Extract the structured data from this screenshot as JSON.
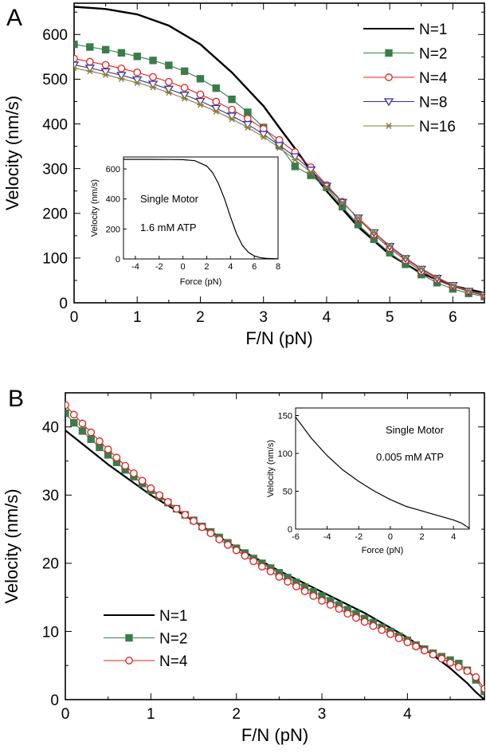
{
  "chart_data": [
    {
      "panel_label": "A",
      "type": "line",
      "xlabel": "F/N (pN)",
      "ylabel": "Velocity (nm/s)",
      "xlim": [
        0,
        6.5
      ],
      "ylim": [
        0,
        670
      ],
      "x_ticks": [
        "0",
        "1",
        "2",
        "3",
        "4",
        "5",
        "6"
      ],
      "y_ticks": [
        "0",
        "100",
        "200",
        "300",
        "400",
        "500",
        "600"
      ],
      "legend_position": "top-right",
      "series": [
        {
          "name": "N=1",
          "color": "#000000",
          "marker": "none",
          "x": [
            0,
            0.5,
            1,
            1.5,
            2,
            2.5,
            3,
            3.25,
            3.5,
            3.75,
            4,
            4.5,
            5,
            5.5,
            6,
            6.5
          ],
          "y": [
            662,
            657,
            645,
            620,
            578,
            515,
            440,
            392,
            345,
            296,
            250,
            170,
            108,
            66,
            38,
            22
          ]
        },
        {
          "name": "N=2",
          "color": "#3a7d4a",
          "marker": "square",
          "x": [
            0,
            0.25,
            0.5,
            0.75,
            1,
            1.25,
            1.5,
            1.75,
            2,
            2.25,
            2.5,
            2.75,
            3,
            3.25,
            3.5,
            3.75,
            4,
            4.25,
            4.5,
            4.75,
            5,
            5.25,
            5.5,
            5.75,
            6,
            6.25,
            6.5
          ],
          "y": [
            578,
            572,
            566,
            559,
            551,
            542,
            531,
            518,
            501,
            480,
            455,
            426,
            392,
            352,
            305,
            285,
            258,
            215,
            175,
            142,
            112,
            86,
            63,
            45,
            31,
            21,
            14
          ]
        },
        {
          "name": "N=4",
          "color": "#e0201e",
          "marker": "circle",
          "x": [
            0,
            0.25,
            0.5,
            0.75,
            1,
            1.25,
            1.5,
            1.75,
            2,
            2.25,
            2.5,
            2.75,
            3,
            3.25,
            3.5,
            3.75,
            4,
            4.25,
            4.5,
            4.75,
            5,
            5.25,
            5.5,
            5.75,
            6,
            6.25,
            6.5
          ],
          "y": [
            546,
            539,
            532,
            524,
            515,
            505,
            494,
            481,
            466,
            450,
            432,
            412,
            389,
            364,
            337,
            303,
            263,
            226,
            188,
            153,
            122,
            95,
            71,
            52,
            37,
            25,
            16
          ]
        },
        {
          "name": "N=8",
          "color": "#3030a0",
          "marker": "triangle-down",
          "x": [
            0,
            0.25,
            0.5,
            0.75,
            1,
            1.25,
            1.5,
            1.75,
            2,
            2.25,
            2.5,
            2.75,
            3,
            3.25,
            3.5,
            3.75,
            4,
            4.25,
            4.5,
            4.75,
            5,
            5.25,
            5.5,
            5.75,
            6,
            6.25,
            6.5
          ],
          "y": [
            532,
            525,
            517,
            509,
            499,
            489,
            478,
            465,
            451,
            435,
            418,
            399,
            377,
            352,
            327,
            297,
            261,
            225,
            190,
            157,
            126,
            99,
            75,
            55,
            39,
            26,
            17
          ]
        },
        {
          "name": "N=16",
          "color": "#8a7a3c",
          "marker": "asterisk",
          "x": [
            0,
            0.25,
            0.5,
            0.75,
            1,
            1.25,
            1.5,
            1.75,
            2,
            2.25,
            2.5,
            2.75,
            3,
            3.25,
            3.5,
            3.75,
            4,
            4.25,
            4.5,
            4.75,
            5,
            5.25,
            5.5,
            5.75,
            6,
            6.25,
            6.5
          ],
          "y": [
            525,
            518,
            510,
            501,
            492,
            482,
            470,
            457,
            443,
            428,
            411,
            392,
            371,
            347,
            320,
            292,
            259,
            224,
            190,
            158,
            128,
            101,
            77,
            57,
            40,
            27,
            18
          ]
        }
      ],
      "inset": {
        "type": "line",
        "xlabel": "Force (pN)",
        "ylabel": "Velocity (nm/s)",
        "xlim": [
          -5,
          8
        ],
        "ylim": [
          0,
          680
        ],
        "x_ticks": [
          "-4",
          "-2",
          "0",
          "2",
          "4",
          "6",
          "8"
        ],
        "y_ticks": [
          "0",
          "200",
          "400",
          "600"
        ],
        "annotation_1": "Single Motor",
        "annotation_2": "1.6 mM ATP",
        "series": [
          {
            "x": [
              -5,
              -3,
              -1,
              0,
              1,
              2,
              2.5,
              3,
              3.5,
              4,
              4.5,
              5,
              5.5,
              6,
              6.5,
              7,
              8
            ],
            "y": [
              664,
              664,
              663,
              662,
              655,
              620,
              575,
              500,
              400,
              280,
              170,
              90,
              45,
              20,
              9,
              4,
              1
            ]
          }
        ]
      }
    },
    {
      "panel_label": "B",
      "type": "line",
      "xlabel": "F/N (pN)",
      "ylabel": "Velocity (nm/s)",
      "xlim": [
        0,
        4.9
      ],
      "ylim": [
        0,
        45
      ],
      "x_ticks": [
        "0",
        "1",
        "2",
        "3",
        "4"
      ],
      "y_ticks": [
        "0",
        "10",
        "20",
        "30",
        "40"
      ],
      "legend_position": "bottom-left",
      "series": [
        {
          "name": "N=1",
          "color": "#000000",
          "marker": "none",
          "x": [
            0,
            0.5,
            1,
            1.5,
            2,
            2.5,
            3,
            3.5,
            4,
            4.25,
            4.5,
            4.7,
            4.8,
            4.9
          ],
          "y": [
            39.5,
            34.5,
            30.0,
            26.2,
            22.3,
            18.9,
            15.8,
            12.7,
            9.1,
            7.0,
            4.6,
            2.4,
            1.1,
            0.0
          ]
        },
        {
          "name": "N=2",
          "color": "#3a7d4a",
          "marker": "square",
          "x": [
            0,
            0.1,
            0.2,
            0.3,
            0.4,
            0.5,
            0.6,
            0.7,
            0.8,
            0.9,
            1.0,
            1.1,
            1.2,
            1.3,
            1.4,
            1.5,
            1.6,
            1.7,
            1.8,
            1.9,
            2.0,
            2.1,
            2.2,
            2.3,
            2.4,
            2.5,
            2.6,
            2.7,
            2.8,
            2.9,
            3.0,
            3.1,
            3.2,
            3.3,
            3.4,
            3.5,
            3.6,
            3.7,
            3.8,
            3.9,
            4.0,
            4.1,
            4.2,
            4.3,
            4.4,
            4.5,
            4.6,
            4.7,
            4.8,
            4.9
          ],
          "y": [
            42.0,
            40.6,
            39.4,
            38.2,
            37.0,
            35.9,
            34.8,
            33.7,
            32.7,
            31.7,
            30.7,
            29.8,
            28.9,
            28.0,
            27.1,
            26.3,
            25.4,
            24.6,
            23.8,
            23.0,
            22.2,
            21.5,
            20.7,
            20.0,
            19.3,
            18.6,
            17.9,
            17.2,
            16.5,
            15.8,
            15.2,
            14.5,
            13.9,
            13.2,
            12.6,
            11.9,
            11.3,
            10.6,
            10.0,
            9.3,
            8.7,
            8.0,
            7.4,
            6.8,
            6.3,
            5.8,
            5.3,
            4.3,
            2.9,
            1.2
          ]
        },
        {
          "name": "N=4",
          "color": "#e0201e",
          "marker": "circle",
          "x": [
            0,
            0.1,
            0.2,
            0.3,
            0.4,
            0.5,
            0.6,
            0.7,
            0.8,
            0.9,
            1.0,
            1.1,
            1.2,
            1.3,
            1.4,
            1.5,
            1.6,
            1.7,
            1.8,
            1.9,
            2.0,
            2.1,
            2.2,
            2.3,
            2.4,
            2.5,
            2.6,
            2.7,
            2.8,
            2.9,
            3.0,
            3.1,
            3.2,
            3.3,
            3.4,
            3.5,
            3.6,
            3.7,
            3.8,
            3.9,
            4.0,
            4.1,
            4.2,
            4.3,
            4.4,
            4.5,
            4.6,
            4.7,
            4.8,
            4.9
          ],
          "y": [
            43.2,
            41.8,
            40.5,
            39.2,
            37.9,
            36.7,
            35.5,
            34.3,
            33.2,
            32.1,
            31.0,
            30.0,
            29.0,
            28.0,
            27.1,
            26.2,
            25.3,
            24.4,
            23.5,
            22.7,
            21.9,
            21.1,
            20.3,
            19.5,
            18.8,
            18.0,
            17.3,
            16.6,
            15.9,
            15.2,
            14.5,
            13.9,
            13.3,
            12.6,
            12.0,
            11.4,
            10.8,
            10.2,
            9.6,
            9.0,
            8.4,
            7.8,
            7.2,
            6.6,
            6.0,
            5.4,
            4.8,
            4.2,
            3.3,
            1.6
          ]
        }
      ],
      "inset": {
        "type": "line",
        "xlabel": "Force (pN)",
        "ylabel": "Velocity (nm/s)",
        "xlim": [
          -6,
          5
        ],
        "ylim": [
          0,
          160
        ],
        "x_ticks": [
          "-6",
          "-4",
          "-2",
          "0",
          "2",
          "4"
        ],
        "y_ticks": [
          "0",
          "50",
          "100",
          "150"
        ],
        "annotation_1": "Single Motor",
        "annotation_2": "0.005 mM ATP",
        "series": [
          {
            "x": [
              -6,
              -5,
              -4,
              -3,
              -2,
              -1,
              0,
              1,
              2,
              3,
              4,
              4.5,
              4.8,
              5
            ],
            "y": [
              148,
              120,
              97,
              78,
              63,
              50,
              39,
              30,
              24,
              18,
              12,
              8,
              4,
              1
            ]
          }
        ]
      }
    }
  ]
}
